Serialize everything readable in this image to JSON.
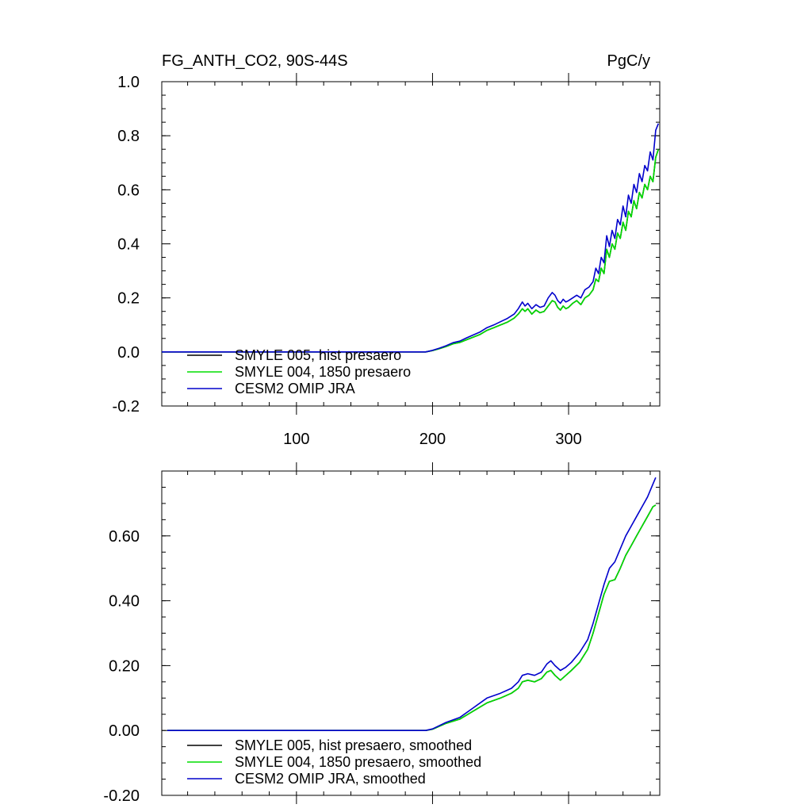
{
  "chart_data": [
    {
      "type": "line",
      "title_left": "FG_ANTH_CO2, 90S-44S",
      "title_right": "PgC/y",
      "xlabel": "",
      "ylabel": "",
      "xlim": [
        1,
        367
      ],
      "ylim": [
        -0.2,
        1.0
      ],
      "x_ticks": [
        100,
        200,
        300
      ],
      "x_tick_labels": [
        "100",
        "200",
        "300"
      ],
      "y_ticks": [
        -0.2,
        0.0,
        0.2,
        0.4,
        0.6,
        0.8,
        1.0
      ],
      "y_tick_labels": [
        "-0.2",
        "0.0",
        "0.2",
        "0.4",
        "0.6",
        "0.8",
        "1.0"
      ],
      "grid": false,
      "legend_position": "lower-left",
      "series": [
        {
          "name": "SMYLE 005, hist presaero",
          "color": "#000000",
          "x": [
            1,
            195,
            200,
            205,
            210,
            215,
            220,
            225,
            230,
            235,
            240,
            245,
            250,
            255,
            260,
            263,
            266,
            268,
            270,
            273,
            276,
            279,
            282,
            285,
            288,
            290,
            292,
            294,
            296,
            298,
            300,
            303,
            306,
            309,
            312,
            315,
            318,
            320,
            322,
            324,
            326,
            328,
            330,
            332,
            334,
            336,
            338,
            340,
            342,
            344,
            346,
            348,
            350,
            352,
            354,
            356,
            358,
            360,
            362,
            364,
            366
          ],
          "y": [
            0.0,
            0.0,
            0.005,
            0.012,
            0.02,
            0.03,
            0.035,
            0.045,
            0.055,
            0.065,
            0.08,
            0.09,
            0.1,
            0.11,
            0.125,
            0.14,
            0.16,
            0.15,
            0.16,
            0.14,
            0.155,
            0.145,
            0.15,
            0.17,
            0.19,
            0.185,
            0.165,
            0.155,
            0.17,
            0.16,
            0.165,
            0.18,
            0.19,
            0.175,
            0.2,
            0.21,
            0.23,
            0.27,
            0.26,
            0.31,
            0.29,
            0.38,
            0.35,
            0.4,
            0.38,
            0.44,
            0.42,
            0.48,
            0.45,
            0.52,
            0.5,
            0.56,
            0.53,
            0.59,
            0.57,
            0.62,
            0.6,
            0.65,
            0.63,
            0.72,
            0.75
          ]
        },
        {
          "name": "SMYLE 004, 1850 presaero",
          "color": "#00dd00",
          "x": [
            1,
            195,
            200,
            205,
            210,
            215,
            220,
            225,
            230,
            235,
            240,
            245,
            250,
            255,
            260,
            263,
            266,
            268,
            270,
            273,
            276,
            279,
            282,
            285,
            288,
            290,
            292,
            294,
            296,
            298,
            300,
            303,
            306,
            309,
            312,
            315,
            318,
            320,
            322,
            324,
            326,
            328,
            330,
            332,
            334,
            336,
            338,
            340,
            342,
            344,
            346,
            348,
            350,
            352,
            354,
            356,
            358,
            360,
            362,
            364,
            366
          ],
          "y": [
            0.0,
            0.0,
            0.005,
            0.012,
            0.02,
            0.03,
            0.035,
            0.045,
            0.055,
            0.065,
            0.08,
            0.09,
            0.1,
            0.11,
            0.125,
            0.14,
            0.16,
            0.15,
            0.16,
            0.14,
            0.155,
            0.145,
            0.15,
            0.17,
            0.19,
            0.185,
            0.165,
            0.155,
            0.17,
            0.16,
            0.165,
            0.18,
            0.19,
            0.175,
            0.2,
            0.21,
            0.23,
            0.27,
            0.26,
            0.31,
            0.29,
            0.38,
            0.35,
            0.4,
            0.38,
            0.44,
            0.42,
            0.48,
            0.45,
            0.52,
            0.5,
            0.56,
            0.53,
            0.59,
            0.57,
            0.62,
            0.6,
            0.65,
            0.63,
            0.72,
            0.75
          ]
        },
        {
          "name": "CESM2 OMIP JRA",
          "color": "#0000cc",
          "x": [
            1,
            195,
            200,
            205,
            210,
            215,
            220,
            225,
            230,
            235,
            240,
            245,
            250,
            255,
            260,
            263,
            266,
            268,
            270,
            273,
            276,
            279,
            282,
            285,
            288,
            290,
            292,
            294,
            296,
            298,
            300,
            303,
            306,
            309,
            312,
            315,
            318,
            320,
            322,
            324,
            326,
            328,
            330,
            332,
            334,
            336,
            338,
            340,
            342,
            344,
            346,
            348,
            350,
            352,
            354,
            356,
            358,
            360,
            362,
            364,
            366
          ],
          "y": [
            0.0,
            0.0,
            0.006,
            0.014,
            0.023,
            0.034,
            0.04,
            0.052,
            0.063,
            0.074,
            0.09,
            0.1,
            0.112,
            0.124,
            0.14,
            0.16,
            0.185,
            0.17,
            0.18,
            0.16,
            0.175,
            0.165,
            0.17,
            0.2,
            0.22,
            0.21,
            0.19,
            0.18,
            0.195,
            0.185,
            0.19,
            0.2,
            0.21,
            0.2,
            0.23,
            0.24,
            0.26,
            0.31,
            0.29,
            0.35,
            0.33,
            0.43,
            0.39,
            0.45,
            0.42,
            0.49,
            0.47,
            0.54,
            0.5,
            0.58,
            0.55,
            0.62,
            0.59,
            0.66,
            0.63,
            0.69,
            0.67,
            0.74,
            0.71,
            0.82,
            0.845
          ]
        }
      ]
    },
    {
      "type": "line",
      "title_left": "",
      "title_right": "",
      "xlabel": "",
      "ylabel": "",
      "xlim": [
        1,
        367
      ],
      "ylim": [
        -0.2,
        0.8
      ],
      "x_ticks": [
        100,
        200,
        300
      ],
      "x_tick_labels": [],
      "y_ticks": [
        -0.2,
        0.0,
        0.2,
        0.4,
        0.6
      ],
      "y_tick_labels": [
        "-0.20",
        "0.00",
        "0.20",
        "0.40",
        "0.60"
      ],
      "grid": false,
      "legend_position": "lower-left",
      "series": [
        {
          "name": "SMYLE 005, hist presaero, smoothed",
          "color": "#000000",
          "x": [
            5,
            195,
            200,
            210,
            220,
            230,
            240,
            250,
            258,
            263,
            266,
            270,
            275,
            280,
            284,
            287,
            290,
            294,
            298,
            302,
            308,
            314,
            318,
            322,
            326,
            330,
            334,
            338,
            342,
            346,
            350,
            354,
            358,
            362,
            364
          ],
          "y": [
            0.0,
            0.0,
            0.004,
            0.022,
            0.035,
            0.06,
            0.085,
            0.1,
            0.115,
            0.13,
            0.15,
            0.155,
            0.15,
            0.16,
            0.18,
            0.185,
            0.17,
            0.155,
            0.17,
            0.185,
            0.21,
            0.25,
            0.3,
            0.36,
            0.42,
            0.46,
            0.465,
            0.5,
            0.54,
            0.57,
            0.6,
            0.63,
            0.66,
            0.69,
            0.695
          ]
        },
        {
          "name": "SMYLE 004, 1850 presaero, smoothed",
          "color": "#00dd00",
          "x": [
            5,
            195,
            200,
            210,
            220,
            230,
            240,
            250,
            258,
            263,
            266,
            270,
            275,
            280,
            284,
            287,
            290,
            294,
            298,
            302,
            308,
            314,
            318,
            322,
            326,
            330,
            334,
            338,
            342,
            346,
            350,
            354,
            358,
            362,
            364
          ],
          "y": [
            0.0,
            0.0,
            0.004,
            0.022,
            0.035,
            0.06,
            0.085,
            0.1,
            0.115,
            0.13,
            0.15,
            0.155,
            0.15,
            0.16,
            0.18,
            0.185,
            0.17,
            0.155,
            0.17,
            0.185,
            0.21,
            0.25,
            0.3,
            0.36,
            0.42,
            0.46,
            0.465,
            0.5,
            0.54,
            0.57,
            0.6,
            0.63,
            0.66,
            0.69,
            0.695
          ]
        },
        {
          "name": "CESM2 OMIP JRA, smoothed",
          "color": "#0000cc",
          "x": [
            5,
            195,
            200,
            210,
            220,
            230,
            240,
            250,
            258,
            263,
            266,
            270,
            275,
            280,
            284,
            287,
            290,
            294,
            298,
            302,
            308,
            314,
            318,
            322,
            326,
            330,
            334,
            338,
            342,
            346,
            350,
            354,
            358,
            362,
            364
          ],
          "y": [
            0.0,
            0.0,
            0.005,
            0.025,
            0.04,
            0.07,
            0.1,
            0.115,
            0.13,
            0.15,
            0.17,
            0.175,
            0.17,
            0.18,
            0.205,
            0.215,
            0.2,
            0.185,
            0.195,
            0.21,
            0.24,
            0.28,
            0.33,
            0.39,
            0.45,
            0.5,
            0.52,
            0.56,
            0.6,
            0.63,
            0.66,
            0.69,
            0.72,
            0.76,
            0.78
          ]
        }
      ]
    }
  ]
}
